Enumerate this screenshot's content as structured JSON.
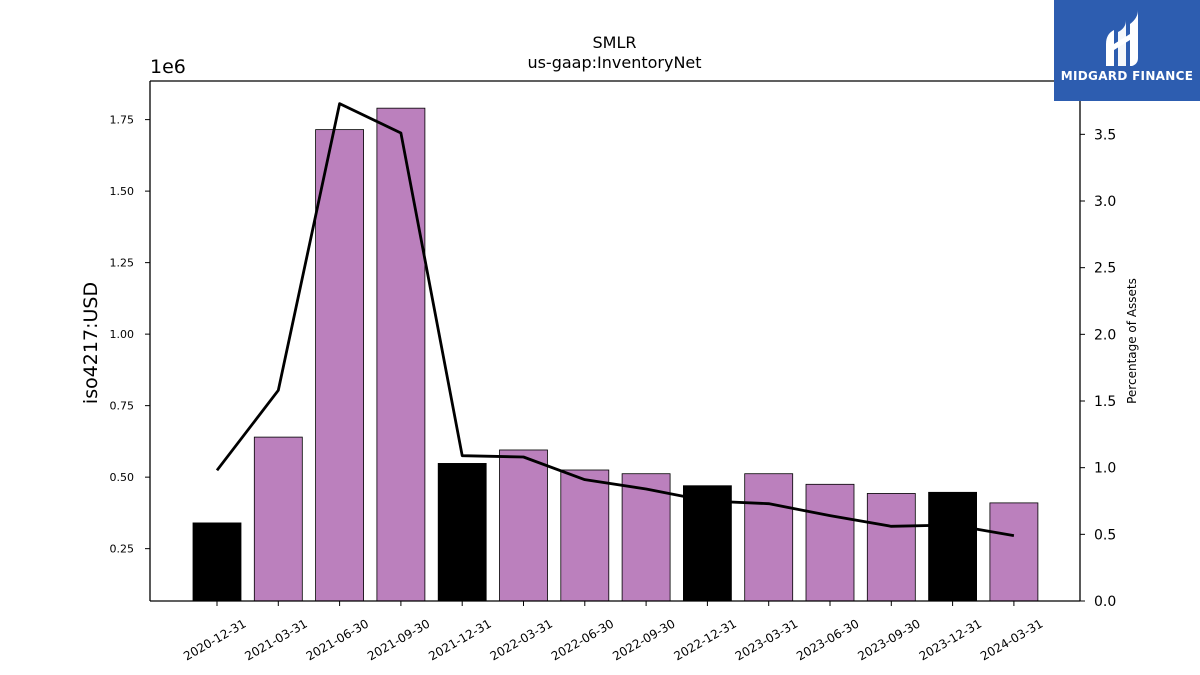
{
  "chart_data": {
    "type": "bar",
    "title": "SMLR",
    "subtitle": "us-gaap:InventoryNet",
    "ylabel": "iso4217:USD",
    "y_scale_label": "1e6",
    "y2label": "Percentage of Assets",
    "categories": [
      "2020-12-31",
      "2021-03-31",
      "2021-06-30",
      "2021-09-30",
      "2021-12-31",
      "2022-03-31",
      "2022-06-30",
      "2022-09-30",
      "2022-12-31",
      "2023-03-31",
      "2023-06-30",
      "2023-09-30",
      "2023-12-31",
      "2024-03-31"
    ],
    "values": [
      340000,
      640000,
      1715000,
      1790000,
      548000,
      595000,
      525000,
      512000,
      470000,
      512000,
      475000,
      443000,
      447000,
      410000
    ],
    "bar_kinds": [
      "annual",
      "quarterly",
      "quarterly",
      "quarterly",
      "annual",
      "quarterly",
      "quarterly",
      "quarterly",
      "annual",
      "quarterly",
      "quarterly",
      "quarterly",
      "annual",
      "quarterly"
    ],
    "line_values": [
      0.98,
      1.58,
      3.73,
      3.51,
      1.09,
      1.08,
      0.91,
      0.84,
      0.75,
      0.73,
      0.64,
      0.56,
      0.57,
      0.49
    ],
    "ylim": [
      67000,
      1885000
    ],
    "y2lim": [
      0.0,
      3.9
    ],
    "yticks": [
      0.25,
      0.5,
      0.75,
      1.0,
      1.25,
      1.5,
      1.75
    ],
    "ytick_labels": [
      "0.25",
      "0.50",
      "0.75",
      "1.00",
      "1.25",
      "1.50",
      "1.75"
    ],
    "y2ticks": [
      0.0,
      0.5,
      1.0,
      1.5,
      2.0,
      2.5,
      3.0,
      3.5
    ],
    "y2tick_labels": [
      "0.0",
      "0.5",
      "1.0",
      "1.5",
      "2.0",
      "2.5",
      "3.0",
      "3.5"
    ],
    "grid": false,
    "colors": {
      "annual": "#000000",
      "quarterly": "#bb80bd",
      "line": "#000000"
    }
  },
  "logo": {
    "text": "MIDGARD FINANCE",
    "bg": "#2d5db0"
  }
}
